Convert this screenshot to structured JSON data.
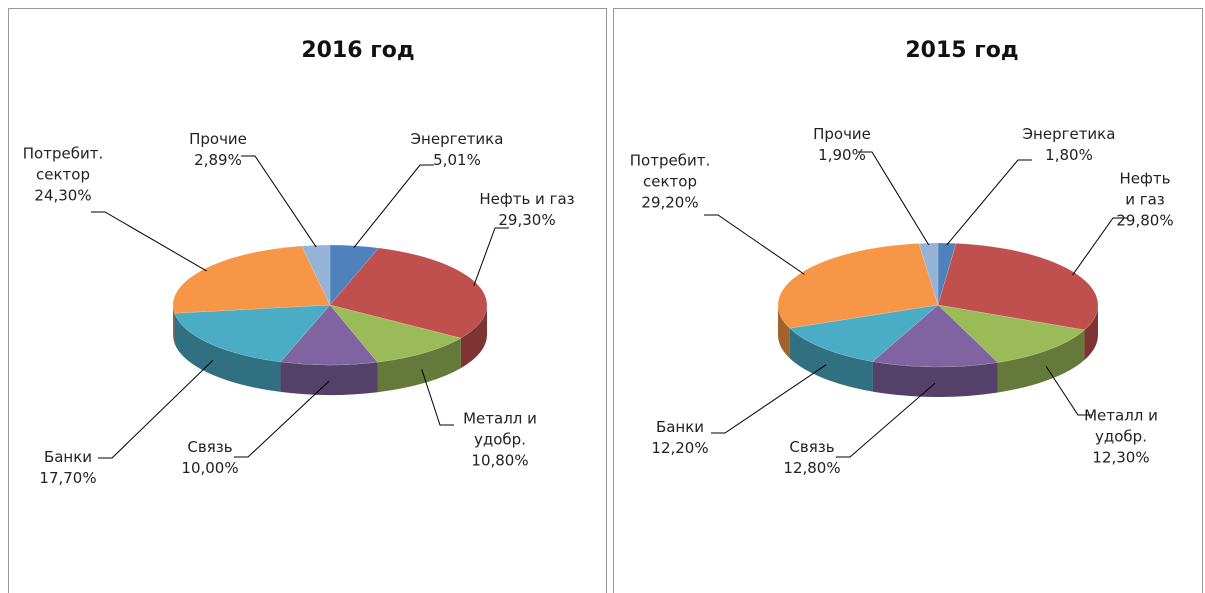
{
  "chart_data": [
    {
      "type": "pie3d",
      "title": "2016 год",
      "categories": [
        "Энергетика",
        "Нефть и газ",
        "Металл и\nудобр.",
        "Связь",
        "Банки",
        "Потребит.\nсектор",
        "Прочие"
      ],
      "values": [
        5.01,
        29.3,
        10.8,
        10.0,
        17.7,
        24.3,
        2.89
      ],
      "value_labels": [
        "5,01%",
        "29,30%",
        "10,80%",
        "10,00%",
        "17,70%",
        "24,30%",
        "2,89%"
      ],
      "colors": [
        "#4f81bd",
        "#c0504d",
        "#9bbb59",
        "#8064a2",
        "#4bacc6",
        "#f79646",
        "#95b3d7"
      ]
    },
    {
      "type": "pie3d",
      "title": "2015 год",
      "categories": [
        "Энергетика",
        "Нефть и газ",
        "Металл и\nудобр.",
        "Связь",
        "Банки",
        "Потребит.\nсектор",
        "Прочие"
      ],
      "values": [
        1.8,
        29.8,
        12.3,
        12.8,
        12.2,
        29.2,
        1.9
      ],
      "value_labels": [
        "1,80%",
        "29,80%",
        "12,30%",
        "12,80%",
        "12,20%",
        "29,20%",
        "1,90%"
      ],
      "colors": [
        "#4f81bd",
        "#c0504d",
        "#9bbb59",
        "#8064a2",
        "#4bacc6",
        "#f79646",
        "#95b3d7"
      ]
    }
  ]
}
